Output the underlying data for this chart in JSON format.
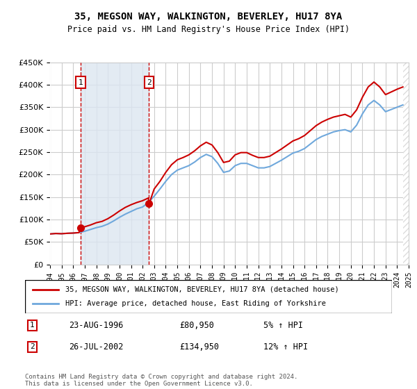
{
  "title": "35, MEGSON WAY, WALKINGTON, BEVERLEY, HU17 8YA",
  "subtitle": "Price paid vs. HM Land Registry's House Price Index (HPI)",
  "legend_line1": "35, MEGSON WAY, WALKINGTON, BEVERLEY, HU17 8YA (detached house)",
  "legend_line2": "HPI: Average price, detached house, East Riding of Yorkshire",
  "footnote": "Contains HM Land Registry data © Crown copyright and database right 2024.\nThis data is licensed under the Open Government Licence v3.0.",
  "transaction1_date": "23-AUG-1996",
  "transaction1_price": 80950,
  "transaction1_label": "1",
  "transaction1_year": 1996.64,
  "transaction1_pct": "5% ↑ HPI",
  "transaction2_date": "26-JUL-2002",
  "transaction2_price": 134950,
  "transaction2_label": "2",
  "transaction2_year": 2002.56,
  "transaction2_pct": "12% ↑ HPI",
  "hpi_color": "#6fa8dc",
  "price_color": "#cc0000",
  "marker_color": "#cc0000",
  "dashed_line_color": "#cc0000",
  "hatch_color": "#cccccc",
  "background_color": "#ffffff",
  "grid_color": "#cccccc",
  "shaded_region_color": "#dce6f1",
  "ylim": [
    0,
    450000
  ],
  "ytick_step": 50000,
  "xmin": 1994,
  "xmax": 2025,
  "hpi_data": {
    "years": [
      1994.0,
      1994.5,
      1995.0,
      1995.5,
      1996.0,
      1996.5,
      1997.0,
      1997.5,
      1998.0,
      1998.5,
      1999.0,
      1999.5,
      2000.0,
      2000.5,
      2001.0,
      2001.5,
      2002.0,
      2002.5,
      2003.0,
      2003.5,
      2004.0,
      2004.5,
      2005.0,
      2005.5,
      2006.0,
      2006.5,
      2007.0,
      2007.5,
      2008.0,
      2008.5,
      2009.0,
      2009.5,
      2010.0,
      2010.5,
      2011.0,
      2011.5,
      2012.0,
      2012.5,
      2013.0,
      2013.5,
      2014.0,
      2014.5,
      2015.0,
      2015.5,
      2016.0,
      2016.5,
      2017.0,
      2017.5,
      2018.0,
      2018.5,
      2019.0,
      2019.5,
      2020.0,
      2020.5,
      2021.0,
      2021.5,
      2022.0,
      2022.5,
      2023.0,
      2023.5,
      2024.0,
      2024.5
    ],
    "values": [
      68000,
      69000,
      68500,
      69500,
      70000,
      71000,
      74000,
      78000,
      82000,
      85000,
      90000,
      97000,
      105000,
      112000,
      118000,
      124000,
      128000,
      138000,
      152000,
      168000,
      185000,
      200000,
      210000,
      215000,
      220000,
      228000,
      238000,
      245000,
      240000,
      225000,
      205000,
      208000,
      220000,
      225000,
      225000,
      220000,
      215000,
      215000,
      218000,
      225000,
      232000,
      240000,
      248000,
      252000,
      258000,
      268000,
      278000,
      285000,
      290000,
      295000,
      298000,
      300000,
      295000,
      310000,
      335000,
      355000,
      365000,
      355000,
      340000,
      345000,
      350000,
      355000
    ]
  },
  "price_data": {
    "years": [
      1994.0,
      1994.5,
      1995.0,
      1995.5,
      1996.0,
      1996.5,
      1996.64,
      1997.0,
      1997.5,
      1998.0,
      1998.5,
      1999.0,
      1999.5,
      2000.0,
      2000.5,
      2001.0,
      2001.5,
      2002.0,
      2002.5,
      2002.56,
      2003.0,
      2003.5,
      2004.0,
      2004.5,
      2005.0,
      2005.5,
      2006.0,
      2006.5,
      2007.0,
      2007.5,
      2008.0,
      2008.5,
      2009.0,
      2009.5,
      2010.0,
      2010.5,
      2011.0,
      2011.5,
      2012.0,
      2012.5,
      2013.0,
      2013.5,
      2014.0,
      2014.5,
      2015.0,
      2015.5,
      2016.0,
      2016.5,
      2017.0,
      2017.5,
      2018.0,
      2018.5,
      2019.0,
      2019.5,
      2020.0,
      2020.5,
      2021.0,
      2021.5,
      2022.0,
      2022.5,
      2023.0,
      2023.5,
      2024.0,
      2024.5
    ],
    "values": [
      68000,
      69000,
      68500,
      69500,
      70000,
      71000,
      80950,
      84000,
      88000,
      93000,
      96000,
      102000,
      110000,
      119000,
      127000,
      133000,
      138000,
      142000,
      148000,
      134950,
      168000,
      185000,
      205000,
      222000,
      233000,
      238000,
      244000,
      253000,
      264000,
      272000,
      266000,
      249000,
      227000,
      230000,
      244000,
      249000,
      249000,
      243000,
      238000,
      238000,
      241000,
      249000,
      257000,
      266000,
      275000,
      280000,
      287000,
      298000,
      309000,
      317000,
      323000,
      328000,
      331000,
      334000,
      328000,
      344000,
      372000,
      395000,
      406000,
      395000,
      378000,
      384000,
      390000,
      395000
    ]
  }
}
